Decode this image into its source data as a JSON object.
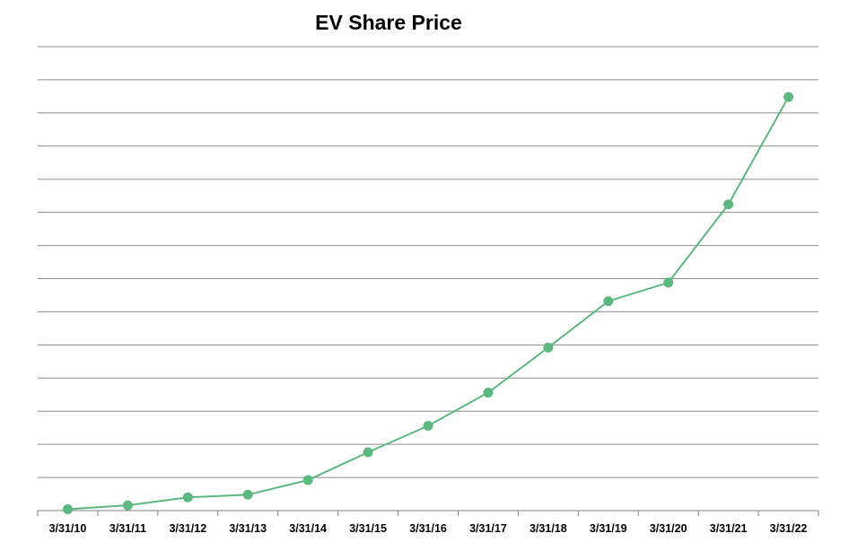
{
  "chart_data": {
    "type": "line",
    "title": "EV Share Price",
    "xlabel": "",
    "ylabel": "",
    "categories": [
      "3/31/10",
      "3/31/11",
      "3/31/12",
      "3/31/13",
      "3/31/14",
      "3/31/15",
      "3/31/16",
      "3/31/17",
      "3/31/18",
      "3/31/19",
      "3/31/20",
      "3/31/21",
      "3/31/22"
    ],
    "series": [
      {
        "values": [
          0.1,
          0.4,
          1.0,
          1.2,
          2.3,
          4.4,
          6.4,
          8.9,
          12.3,
          15.8,
          17.2,
          23.1,
          31.2
        ]
      }
    ],
    "ylim": [
      0,
      35
    ],
    "y_gridlines": 14,
    "y_tick_labels_shown": false,
    "grid": true,
    "legend": "none",
    "line_color": "#5cb87f",
    "marker": "circle"
  }
}
